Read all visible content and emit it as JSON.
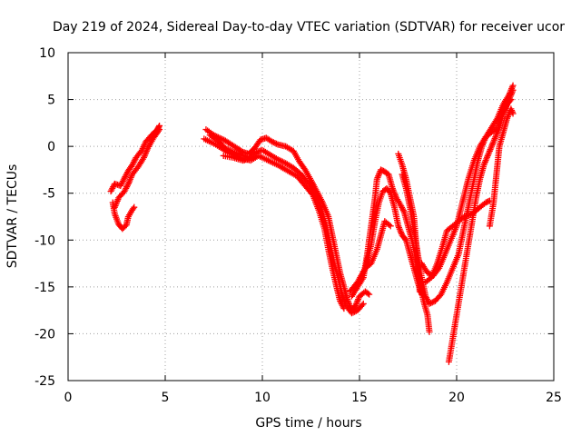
{
  "chart_data": {
    "type": "scatter",
    "title": "Day 219 of 2024, Sidereal Day-to-day VTEC variation (SDTVAR) for receiver ucor",
    "xlabel": "GPS time / hours",
    "ylabel": "SDTVAR / TECUs",
    "xlim": [
      0,
      25
    ],
    "ylim": [
      -25,
      10
    ],
    "xticks": [
      0,
      5,
      10,
      15,
      20,
      25
    ],
    "yticks": [
      -25,
      -20,
      -15,
      -10,
      -5,
      0,
      5,
      10
    ],
    "grid": true,
    "marker": "+",
    "color": "#ff0000",
    "series": [
      {
        "name": "trace-1",
        "points": [
          [
            2.2,
            -4.8
          ],
          [
            2.4,
            -4.0
          ],
          [
            2.7,
            -4.2
          ],
          [
            2.9,
            -3.4
          ],
          [
            3.1,
            -2.6
          ],
          [
            3.3,
            -2.0
          ],
          [
            3.5,
            -1.2
          ],
          [
            3.8,
            -0.4
          ],
          [
            4.0,
            0.5
          ],
          [
            4.3,
            1.2
          ],
          [
            4.6,
            1.8
          ],
          [
            4.7,
            2.2
          ]
        ]
      },
      {
        "name": "trace-2",
        "points": [
          [
            2.3,
            -6.0
          ],
          [
            2.4,
            -7.2
          ],
          [
            2.6,
            -8.3
          ],
          [
            2.8,
            -8.8
          ],
          [
            3.0,
            -8.4
          ],
          [
            3.1,
            -7.5
          ],
          [
            3.3,
            -6.8
          ],
          [
            3.4,
            -6.5
          ]
        ]
      },
      {
        "name": "trace-3",
        "points": [
          [
            2.4,
            -6.5
          ],
          [
            2.6,
            -5.5
          ],
          [
            2.9,
            -4.8
          ],
          [
            3.1,
            -4.0
          ],
          [
            3.3,
            -3.0
          ],
          [
            3.6,
            -2.2
          ],
          [
            3.9,
            -1.2
          ],
          [
            4.1,
            -0.2
          ],
          [
            4.4,
            0.9
          ],
          [
            4.7,
            1.8
          ]
        ]
      },
      {
        "name": "trace-4",
        "points": [
          [
            7.1,
            1.8
          ],
          [
            7.5,
            1.2
          ],
          [
            7.8,
            0.9
          ],
          [
            8.1,
            0.6
          ],
          [
            8.4,
            0.2
          ],
          [
            8.7,
            -0.2
          ],
          [
            9.0,
            -0.6
          ],
          [
            9.3,
            -0.8
          ],
          [
            9.6,
            -0.2
          ],
          [
            9.9,
            0.7
          ],
          [
            10.2,
            0.9
          ],
          [
            10.5,
            0.5
          ],
          [
            10.8,
            0.2
          ],
          [
            11.2,
            0.0
          ],
          [
            11.6,
            -0.5
          ],
          [
            11.9,
            -1.6
          ],
          [
            12.2,
            -2.5
          ],
          [
            12.5,
            -3.6
          ],
          [
            12.8,
            -4.8
          ],
          [
            13.1,
            -6.0
          ],
          [
            13.4,
            -7.5
          ],
          [
            13.6,
            -9.5
          ],
          [
            13.8,
            -11.5
          ],
          [
            14.0,
            -13.5
          ],
          [
            14.2,
            -15.0
          ],
          [
            14.4,
            -16.5
          ],
          [
            14.6,
            -17.5
          ],
          [
            14.8,
            -17.0
          ],
          [
            15.0,
            -16.0
          ],
          [
            15.3,
            -15.5
          ],
          [
            15.5,
            -15.8
          ]
        ]
      },
      {
        "name": "trace-5",
        "points": [
          [
            7.3,
            1.2
          ],
          [
            7.7,
            0.6
          ],
          [
            8.1,
            -0.2
          ],
          [
            8.5,
            -0.6
          ],
          [
            8.9,
            -0.9
          ],
          [
            9.3,
            -1.2
          ],
          [
            9.7,
            -0.6
          ],
          [
            10.0,
            -0.4
          ],
          [
            10.4,
            -0.9
          ],
          [
            10.8,
            -1.4
          ],
          [
            11.2,
            -1.8
          ],
          [
            11.6,
            -2.3
          ],
          [
            12.0,
            -3.0
          ],
          [
            12.4,
            -4.0
          ],
          [
            12.7,
            -5.0
          ],
          [
            13.0,
            -6.5
          ],
          [
            13.3,
            -8.5
          ],
          [
            13.5,
            -10.5
          ],
          [
            13.7,
            -12.5
          ],
          [
            13.9,
            -14.0
          ],
          [
            14.1,
            -15.8
          ],
          [
            14.3,
            -17.0
          ],
          [
            14.6,
            -17.8
          ],
          [
            14.9,
            -17.5
          ],
          [
            15.2,
            -16.8
          ]
        ]
      },
      {
        "name": "trace-6",
        "points": [
          [
            7.0,
            0.8
          ],
          [
            7.6,
            0.2
          ],
          [
            8.2,
            -0.6
          ],
          [
            8.8,
            -1.2
          ],
          [
            9.4,
            -1.5
          ],
          [
            9.8,
            -1.0
          ],
          [
            10.3,
            -1.5
          ],
          [
            10.8,
            -2.0
          ],
          [
            11.3,
            -2.6
          ],
          [
            11.8,
            -3.2
          ],
          [
            12.2,
            -4.2
          ],
          [
            12.6,
            -5.2
          ],
          [
            12.9,
            -6.8
          ],
          [
            13.2,
            -8.8
          ],
          [
            13.4,
            -11.0
          ],
          [
            13.6,
            -13.0
          ],
          [
            13.8,
            -14.8
          ],
          [
            14.0,
            -16.5
          ],
          [
            14.2,
            -17.3
          ]
        ]
      },
      {
        "name": "trace-7",
        "points": [
          [
            8.0,
            -1.0
          ],
          [
            8.5,
            -1.2
          ],
          [
            9.0,
            -1.5
          ],
          [
            9.4,
            -1.3
          ]
        ]
      },
      {
        "name": "trace-8",
        "points": [
          [
            14.5,
            -15.5
          ],
          [
            14.9,
            -14.5
          ],
          [
            15.3,
            -13.0
          ],
          [
            15.6,
            -12.5
          ],
          [
            15.9,
            -11.0
          ],
          [
            16.1,
            -9.5
          ],
          [
            16.3,
            -8.0
          ],
          [
            16.6,
            -8.5
          ]
        ]
      },
      {
        "name": "trace-9",
        "points": [
          [
            14.6,
            -16.0
          ],
          [
            14.9,
            -15.0
          ],
          [
            15.2,
            -14.0
          ],
          [
            15.4,
            -11.5
          ],
          [
            15.6,
            -8.5
          ],
          [
            15.8,
            -5.5
          ],
          [
            15.9,
            -3.5
          ],
          [
            16.1,
            -2.5
          ],
          [
            16.3,
            -2.7
          ],
          [
            16.5,
            -3.0
          ],
          [
            16.7,
            -4.5
          ],
          [
            16.9,
            -5.5
          ],
          [
            17.1,
            -6.2
          ],
          [
            17.3,
            -7.0
          ],
          [
            17.5,
            -8.5
          ],
          [
            17.7,
            -10.0
          ],
          [
            17.9,
            -12.0
          ],
          [
            18.1,
            -14.5
          ],
          [
            18.3,
            -16.5
          ],
          [
            18.5,
            -18.0
          ],
          [
            18.6,
            -19.8
          ]
        ]
      },
      {
        "name": "trace-10",
        "points": [
          [
            15.0,
            -14.5
          ],
          [
            15.3,
            -13.0
          ],
          [
            15.6,
            -10.5
          ],
          [
            15.8,
            -8.0
          ],
          [
            16.0,
            -6.0
          ],
          [
            16.2,
            -4.8
          ],
          [
            16.4,
            -4.5
          ],
          [
            16.6,
            -5.0
          ],
          [
            16.8,
            -6.5
          ],
          [
            17.0,
            -8.5
          ],
          [
            17.2,
            -9.5
          ],
          [
            17.4,
            -10.0
          ],
          [
            17.6,
            -11.5
          ],
          [
            17.8,
            -13.0
          ],
          [
            18.0,
            -14.5
          ],
          [
            18.2,
            -15.8
          ]
        ]
      },
      {
        "name": "trace-11",
        "points": [
          [
            17.0,
            -0.8
          ],
          [
            17.2,
            -2.0
          ],
          [
            17.4,
            -3.5
          ],
          [
            17.6,
            -5.5
          ],
          [
            17.8,
            -7.5
          ],
          [
            17.9,
            -10.0
          ],
          [
            18.0,
            -12.5
          ],
          [
            18.1,
            -15.5
          ]
        ]
      },
      {
        "name": "trace-12",
        "points": [
          [
            17.2,
            -3.0
          ],
          [
            17.4,
            -4.5
          ],
          [
            17.6,
            -6.5
          ],
          [
            17.8,
            -9.0
          ],
          [
            18.0,
            -11.5
          ],
          [
            18.2,
            -14.0
          ],
          [
            18.4,
            -16.0
          ],
          [
            18.6,
            -16.8
          ],
          [
            18.9,
            -16.5
          ],
          [
            19.2,
            -15.8
          ],
          [
            19.5,
            -14.5
          ],
          [
            19.8,
            -13.0
          ],
          [
            20.1,
            -11.5
          ],
          [
            20.3,
            -9.5
          ],
          [
            20.5,
            -7.5
          ],
          [
            20.7,
            -5.5
          ],
          [
            20.9,
            -3.5
          ],
          [
            21.1,
            -1.5
          ],
          [
            21.3,
            0.0
          ],
          [
            21.5,
            1.0
          ],
          [
            21.8,
            2.0
          ],
          [
            22.1,
            3.0
          ],
          [
            22.4,
            4.5
          ],
          [
            22.7,
            5.5
          ],
          [
            22.9,
            6.5
          ]
        ]
      },
      {
        "name": "trace-13",
        "points": [
          [
            18.2,
            -12.5
          ],
          [
            18.5,
            -13.5
          ],
          [
            18.8,
            -13.8
          ],
          [
            19.1,
            -13.0
          ],
          [
            19.4,
            -11.5
          ],
          [
            19.7,
            -10.0
          ],
          [
            20.0,
            -8.5
          ],
          [
            20.3,
            -6.0
          ],
          [
            20.6,
            -3.5
          ],
          [
            20.9,
            -1.5
          ],
          [
            21.2,
            0.0
          ],
          [
            21.5,
            1.0
          ],
          [
            21.8,
            1.5
          ],
          [
            22.1,
            2.0
          ],
          [
            22.4,
            3.5
          ],
          [
            22.7,
            5.0
          ],
          [
            22.9,
            6.0
          ]
        ]
      },
      {
        "name": "trace-14",
        "points": [
          [
            18.4,
            -14.5
          ],
          [
            18.7,
            -14.0
          ],
          [
            19.0,
            -12.5
          ],
          [
            19.3,
            -10.5
          ],
          [
            19.5,
            -9.0
          ],
          [
            19.8,
            -8.5
          ],
          [
            20.1,
            -8.0
          ],
          [
            20.4,
            -7.5
          ],
          [
            20.8,
            -7.2
          ],
          [
            21.2,
            -6.5
          ],
          [
            21.5,
            -6.0
          ],
          [
            21.7,
            -5.8
          ]
        ]
      },
      {
        "name": "trace-15",
        "points": [
          [
            19.6,
            -23.0
          ],
          [
            19.8,
            -20.5
          ],
          [
            20.0,
            -18.0
          ],
          [
            20.2,
            -15.5
          ],
          [
            20.4,
            -13.0
          ],
          [
            20.6,
            -10.5
          ],
          [
            20.8,
            -8.0
          ],
          [
            21.0,
            -5.5
          ],
          [
            21.2,
            -3.5
          ],
          [
            21.4,
            -2.0
          ],
          [
            21.6,
            -1.0
          ],
          [
            21.8,
            0.0
          ],
          [
            22.0,
            1.0
          ],
          [
            22.2,
            2.0
          ],
          [
            22.4,
            3.5
          ],
          [
            22.6,
            4.5
          ],
          [
            22.8,
            5.0
          ]
        ]
      },
      {
        "name": "trace-16",
        "points": [
          [
            21.7,
            -8.5
          ],
          [
            21.9,
            -6.0
          ],
          [
            22.0,
            -4.0
          ],
          [
            22.1,
            -2.0
          ],
          [
            22.2,
            0.0
          ],
          [
            22.4,
            1.5
          ],
          [
            22.6,
            3.0
          ],
          [
            22.8,
            4.0
          ],
          [
            22.9,
            3.5
          ]
        ]
      }
    ]
  }
}
